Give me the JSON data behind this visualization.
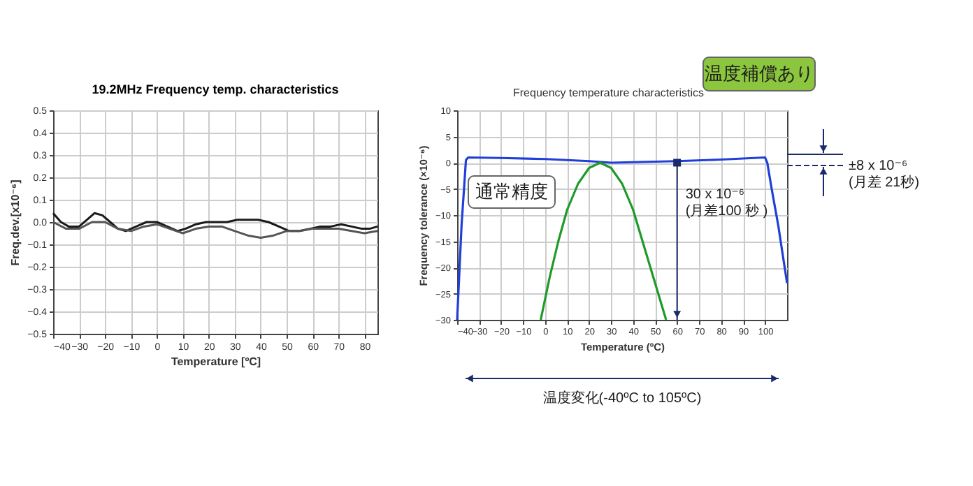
{
  "chart_data": [
    {
      "type": "line",
      "title": "19.2MHz Frequency temp. characteristics",
      "xlabel": "Temperature [ºC]",
      "ylabel": "Freq.dev.[x10⁻⁶]",
      "xlim": [
        -40,
        85
      ],
      "ylim": [
        -0.5,
        0.5
      ],
      "xticks": [
        -40,
        -30,
        -20,
        -10,
        0,
        10,
        20,
        30,
        40,
        50,
        60,
        70,
        80
      ],
      "yticks": [
        -0.5,
        -0.4,
        -0.3,
        -0.2,
        -0.1,
        {
          "value": 0,
          "label": "0.0"
        },
        0.1,
        0.2,
        0.3,
        0.4,
        0.5
      ],
      "grid": true,
      "series": [
        {
          "color": "#1a1a1a",
          "x": [
            -40,
            -37,
            -34,
            -30,
            -27,
            -24,
            -21,
            -18,
            -15,
            -12,
            -8,
            -4,
            0,
            4,
            8,
            11,
            15,
            19,
            23,
            27,
            31,
            35,
            39,
            43,
            47,
            51,
            55,
            59,
            63,
            67,
            71,
            75,
            79,
            82,
            85
          ],
          "values": [
            0.04,
            0.0,
            -0.02,
            -0.02,
            0.01,
            0.04,
            0.03,
            0.0,
            -0.03,
            -0.04,
            -0.02,
            0.0,
            0.0,
            -0.02,
            -0.04,
            -0.03,
            -0.01,
            0.0,
            0.0,
            0.0,
            0.01,
            0.01,
            0.01,
            0.0,
            -0.02,
            -0.04,
            -0.04,
            -0.03,
            -0.02,
            -0.02,
            -0.01,
            -0.02,
            -0.03,
            -0.03,
            -0.02
          ]
        },
        {
          "color": "#555555",
          "x": [
            -40,
            -35,
            -30,
            -25,
            -20,
            -15,
            -10,
            -5,
            0,
            5,
            10,
            15,
            20,
            25,
            30,
            35,
            40,
            45,
            50,
            55,
            60,
            65,
            70,
            75,
            80,
            85
          ],
          "values": [
            0.0,
            -0.03,
            -0.03,
            0.0,
            0.0,
            -0.03,
            -0.04,
            -0.02,
            -0.01,
            -0.03,
            -0.05,
            -0.03,
            -0.02,
            -0.02,
            -0.04,
            -0.06,
            -0.07,
            -0.06,
            -0.04,
            -0.04,
            -0.03,
            -0.03,
            -0.03,
            -0.04,
            -0.05,
            -0.04
          ]
        }
      ]
    },
    {
      "type": "line",
      "title": "Frequency temperature characteristics",
      "xlabel": "Temperature (ºC)",
      "ylabel": "Frequency tolerance (×10⁻⁶)",
      "xlim": [
        -40,
        110
      ],
      "ylim": [
        -30,
        10
      ],
      "xticks": [
        -40,
        -30,
        -20,
        -10,
        0,
        10,
        20,
        30,
        40,
        50,
        60,
        70,
        80,
        90,
        100
      ],
      "yticks": [
        -30,
        -25,
        -20,
        -15,
        -10,
        -5,
        0,
        5,
        10
      ],
      "grid": true,
      "series": [
        {
          "color": "#1f3fd8",
          "x": [
            -40,
            -38,
            -36,
            -35,
            -20,
            0,
            20,
            30,
            40,
            60,
            80,
            100,
            101,
            103,
            106,
            110
          ],
          "values": [
            -30,
            -12,
            0.5,
            1,
            0.9,
            0.7,
            0.3,
            0,
            0.1,
            0.3,
            0.6,
            1,
            0,
            -5,
            -12,
            -23
          ]
        },
        {
          "color": "#1f9a2a",
          "x": [
            -2,
            2,
            6,
            10,
            15,
            20,
            25,
            30,
            35,
            40,
            45,
            50,
            55
          ],
          "values": [
            -30,
            -22,
            -15,
            -9,
            -4,
            -1,
            0,
            -1,
            -4,
            -9,
            -16,
            -23,
            -30
          ]
        }
      ],
      "annotations": [
        "温度補償あり",
        "通常精度",
        "30 x 10⁻⁶\n(月差100 秒 )",
        "±8 x 10⁻⁶\n(月差 21秒)",
        "温度変化(-40ºC to 105ºC)"
      ]
    }
  ]
}
